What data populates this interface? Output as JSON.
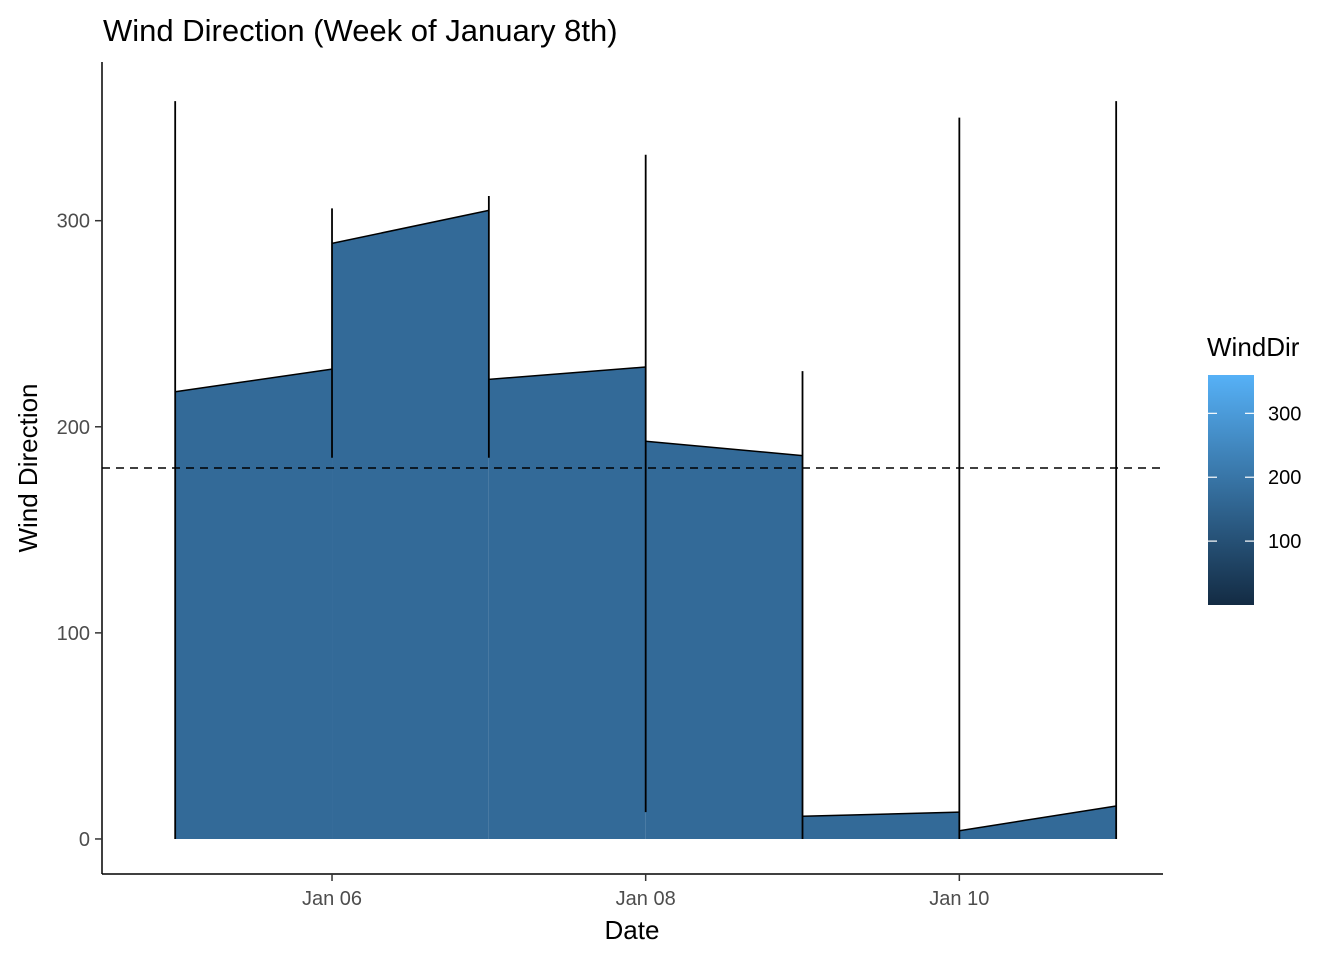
{
  "chart_data": {
    "type": "area",
    "title": "Wind Direction (Week of January 8th)",
    "xlabel": "Date",
    "ylabel": "Wind Direction",
    "x_ticks": [
      "Jan 06",
      "Jan 08",
      "Jan 10"
    ],
    "x_tick_dates": [
      "2018-01-06",
      "2018-01-08",
      "2018-01-10"
    ],
    "y_ticks": [
      0,
      100,
      200,
      300
    ],
    "xlim": [
      "2018-01-04T12:48",
      "2018-01-11T07:10"
    ],
    "ylim": [
      -17,
      377
    ],
    "fill_color": "#336a98",
    "reference_line": {
      "y": 180,
      "style": "dashed"
    },
    "days": [
      {
        "date": "2018-01-05",
        "start": 217,
        "end": 228,
        "min": 0,
        "max": 358
      },
      {
        "date": "2018-01-06",
        "start": 289,
        "end": 305,
        "min": 185,
        "max": 306
      },
      {
        "date": "2018-01-07",
        "start": 223,
        "end": 229,
        "min": 185,
        "max": 312
      },
      {
        "date": "2018-01-08",
        "start": 193,
        "end": 186,
        "min": 13,
        "max": 332
      },
      {
        "date": "2018-01-09",
        "start": 11,
        "end": 13,
        "min": 0,
        "max": 227
      },
      {
        "date": "2018-01-10",
        "start": 4,
        "end": 16,
        "min": 0,
        "max": 350
      },
      {
        "date": "2018-01-11",
        "start": null,
        "end": null,
        "min": 0,
        "max": 358
      }
    ],
    "legend": {
      "title": "WindDir",
      "ticks": [
        100,
        200,
        300
      ],
      "range": [
        0,
        360
      ],
      "color_low": "#132b43",
      "color_high": "#56b1f7",
      "position": "right"
    },
    "grid": false
  }
}
